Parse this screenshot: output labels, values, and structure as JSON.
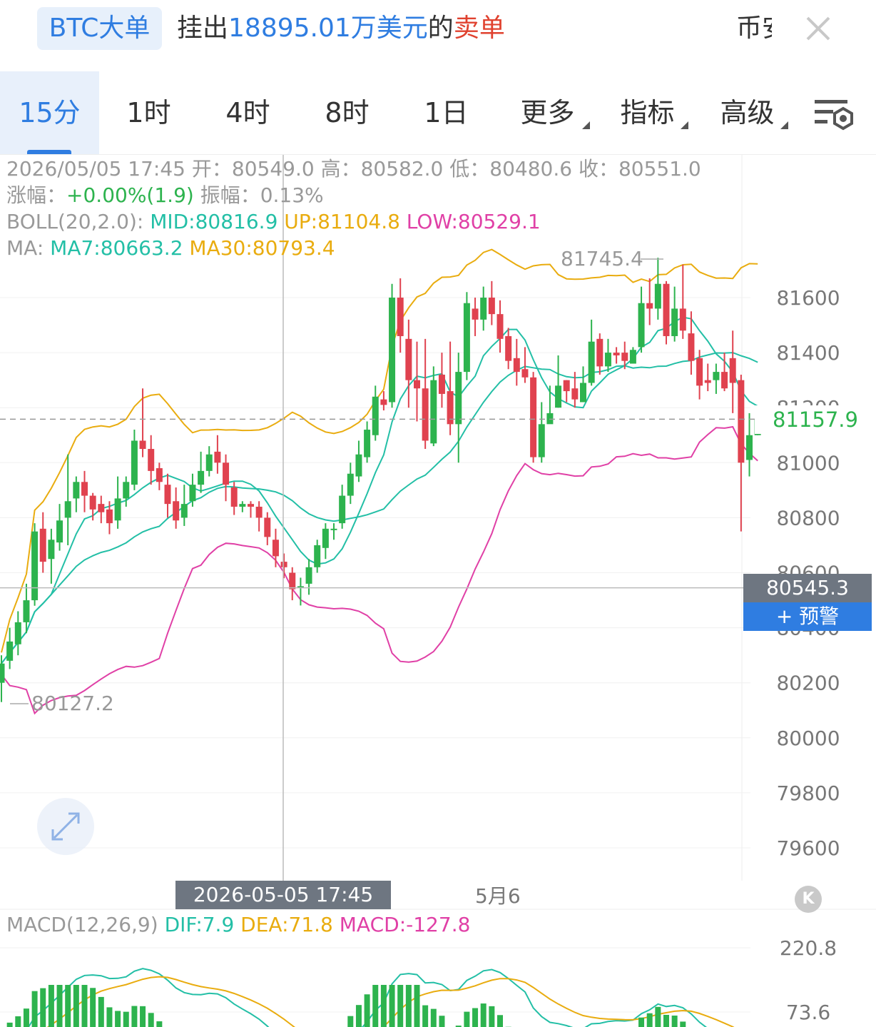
{
  "banner": {
    "badge": "BTC大单",
    "msg_prefix": "挂出",
    "msg_amount": "18895.01万美元",
    "msg_mid": "的",
    "msg_type": "卖单",
    "cut_text": "币安",
    "close_icon": "close-icon"
  },
  "tabs": [
    {
      "label": "15分",
      "active": true
    },
    {
      "label": "1时"
    },
    {
      "label": "4时"
    },
    {
      "label": "8时"
    },
    {
      "label": "1日"
    },
    {
      "label": "更多",
      "dropdown": true
    },
    {
      "label": "指标",
      "dropdown": true
    },
    {
      "label": "高级",
      "dropdown": true
    }
  ],
  "settings_icon": "chart-settings-icon",
  "info": {
    "line1": "2026/05/05 17:45 开：80549.0 高：80582.0 低：80480.6 收：80551.0",
    "change_label": "涨幅：",
    "change_value": "+0.00%(1.9)",
    "amp_label": " 振幅：0.13%",
    "boll_label": "BOLL(20,2.0): ",
    "boll_mid": "MID:80816.9",
    "boll_up": " UP:81104.8",
    "boll_low": " LOW:80529.1",
    "ma_label": "MA: ",
    "ma7": "MA7:80663.2",
    "ma30": " MA30:80793.4"
  },
  "colors": {
    "up": "#2db34e",
    "down": "#e0424f",
    "boll_mid": "#23bfa6",
    "boll_up": "#e9ac0f",
    "boll_low": "#e040a6",
    "accent": "#2f7de1"
  },
  "y_axis": [
    "81600",
    "81400",
    "81200",
    "81000",
    "80800",
    "80600",
    "80400",
    "80200",
    "80000",
    "79800",
    "79600"
  ],
  "current_price": "81157.9",
  "crosshair_price": "80545.3",
  "alert_label": "+ 预警",
  "high_marker": "81745.4",
  "low_marker": "80127.2",
  "crosshair_date": "2026-05-05 17:45",
  "x_label": "5月6",
  "k_button": "K",
  "macd": {
    "label": "MACD(12,26,9) ",
    "dif": "DIF:7.9",
    "dea": " DEA:71.8",
    "macd": " MACD:-127.8",
    "axis": [
      "220.8",
      "73.6"
    ]
  },
  "chart_data": {
    "type": "candlestick",
    "ylim": [
      79550,
      81800
    ],
    "high": 81745.4,
    "low": 80127.2,
    "current": 81157.9,
    "candles": [
      [
        80200,
        80270,
        80130,
        80300
      ],
      [
        80280,
        80350,
        80250,
        80400
      ],
      [
        80340,
        80420,
        80300,
        80460
      ],
      [
        80420,
        80500,
        80380,
        80560
      ],
      [
        80500,
        80750,
        80480,
        80780
      ],
      [
        80760,
        80640,
        80600,
        80820
      ],
      [
        80650,
        80720,
        80560,
        80760
      ],
      [
        80710,
        80790,
        80680,
        80850
      ],
      [
        80800,
        80860,
        80700,
        81030
      ],
      [
        80870,
        80930,
        80820,
        80950
      ],
      [
        80930,
        80880,
        80820,
        80970
      ],
      [
        80880,
        80830,
        80790,
        80890
      ],
      [
        80850,
        80820,
        80780,
        80880
      ],
      [
        80830,
        80780,
        80740,
        80860
      ],
      [
        80790,
        80870,
        80760,
        80950
      ],
      [
        80870,
        80930,
        80840,
        80950
      ],
      [
        80920,
        81080,
        80900,
        81120
      ],
      [
        81080,
        81050,
        81020,
        81270
      ],
      [
        81050,
        80970,
        80920,
        81100
      ],
      [
        80980,
        80930,
        80900,
        81000
      ],
      [
        80920,
        80850,
        80800,
        80960
      ],
      [
        80860,
        80790,
        80760,
        80910
      ],
      [
        80800,
        80850,
        80770,
        80920
      ],
      [
        80860,
        80920,
        80840,
        80960
      ],
      [
        80920,
        80970,
        80890,
        81040
      ],
      [
        80970,
        81030,
        80950,
        81060
      ],
      [
        81040,
        81000,
        80960,
        81100
      ],
      [
        81000,
        80920,
        80860,
        81030
      ],
      [
        80910,
        80840,
        80810,
        80930
      ],
      [
        80840,
        80850,
        80820,
        80860
      ],
      [
        80850,
        80840,
        80800,
        80860
      ],
      [
        80840,
        80800,
        80750,
        80860
      ],
      [
        80800,
        80730,
        80700,
        80820
      ],
      [
        80720,
        80660,
        80620,
        80760
      ],
      [
        80640,
        80620,
        80580,
        80670
      ],
      [
        80600,
        80540,
        80500,
        80620
      ],
      [
        80550,
        80551,
        80481,
        80582
      ],
      [
        80560,
        80620,
        80520,
        80650
      ],
      [
        80620,
        80700,
        80600,
        80720
      ],
      [
        80690,
        80760,
        80650,
        80780
      ],
      [
        80760,
        80760,
        80720,
        80780
      ],
      [
        80780,
        80880,
        80760,
        80920
      ],
      [
        80880,
        80960,
        80850,
        81000
      ],
      [
        80950,
        81030,
        80930,
        81080
      ],
      [
        81020,
        81120,
        81000,
        81150
      ],
      [
        81100,
        81240,
        81080,
        81280
      ],
      [
        81230,
        81210,
        81190,
        81260
      ],
      [
        81220,
        81600,
        81200,
        81650
      ],
      [
        81600,
        81460,
        81400,
        81670
      ],
      [
        81450,
        81300,
        81200,
        81520
      ],
      [
        81300,
        81270,
        81150,
        81440
      ],
      [
        81270,
        81080,
        81050,
        81450
      ],
      [
        81070,
        81300,
        81060,
        81350
      ],
      [
        81320,
        81250,
        81200,
        81400
      ],
      [
        81260,
        81140,
        81100,
        81440
      ],
      [
        81140,
        81330,
        81000,
        81400
      ],
      [
        81330,
        81580,
        81300,
        81620
      ],
      [
        81560,
        81520,
        81460,
        81600
      ],
      [
        81520,
        81600,
        81480,
        81640
      ],
      [
        81600,
        81540,
        81500,
        81660
      ],
      [
        81540,
        81450,
        81400,
        81590
      ],
      [
        81460,
        81370,
        81340,
        81490
      ],
      [
        81380,
        81330,
        81280,
        81450
      ],
      [
        81340,
        81310,
        81290,
        81420
      ],
      [
        81310,
        81020,
        81000,
        81330
      ],
      [
        81020,
        81140,
        81000,
        81220
      ],
      [
        81140,
        81180,
        81150,
        81280
      ],
      [
        81200,
        81280,
        81200,
        81390
      ],
      [
        81300,
        81260,
        81220,
        81300
      ],
      [
        81270,
        81230,
        81200,
        81330
      ],
      [
        81220,
        81290,
        81220,
        81350
      ],
      [
        81290,
        81440,
        81280,
        81520
      ],
      [
        81450,
        81350,
        81320,
        81470
      ],
      [
        81350,
        81400,
        81330,
        81450
      ],
      [
        81400,
        81390,
        81360,
        81420
      ],
      [
        81400,
        81370,
        81340,
        81440
      ],
      [
        81360,
        81410,
        81380,
        81420
      ],
      [
        81420,
        81580,
        81400,
        81640
      ],
      [
        81580,
        81560,
        81500,
        81670
      ],
      [
        81560,
        81650,
        81520,
        81745
      ],
      [
        81650,
        81460,
        81430,
        81660
      ],
      [
        81460,
        81560,
        81440,
        81640
      ],
      [
        81560,
        81480,
        81450,
        81720
      ],
      [
        81470,
        81370,
        81320,
        81550
      ],
      [
        81380,
        81280,
        81230,
        81410
      ],
      [
        81300,
        81290,
        81260,
        81360
      ],
      [
        81300,
        81330,
        81250,
        81360
      ],
      [
        81330,
        81270,
        81260,
        81400
      ],
      [
        81380,
        81290,
        81180,
        81480
      ],
      [
        81300,
        81000,
        80750,
        81320
      ],
      [
        81010,
        81100,
        80950,
        81180
      ],
      [
        81100,
        81158,
        81100,
        81180
      ]
    ]
  }
}
